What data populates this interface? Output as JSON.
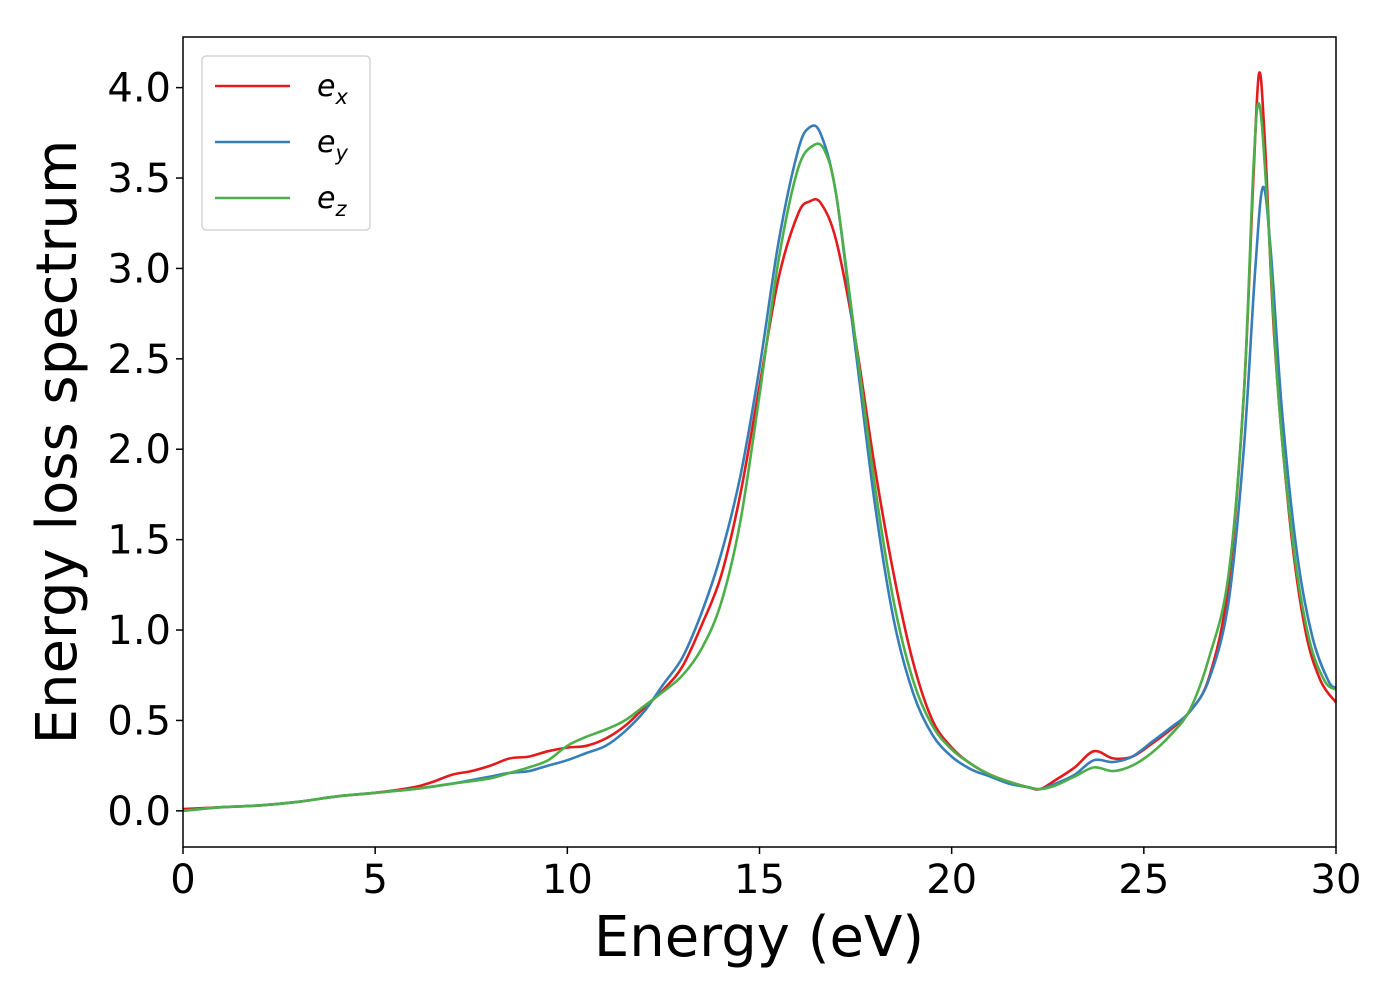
{
  "chart_data": {
    "type": "line",
    "title": "",
    "xlabel": "Energy (eV)",
    "ylabel": "Energy loss spectrum",
    "xlim": [
      0,
      30
    ],
    "ylim": [
      -0.2,
      4.28
    ],
    "xticks": [
      0,
      5,
      10,
      15,
      20,
      25,
      30
    ],
    "yticks": [
      0.0,
      0.5,
      1.0,
      1.5,
      2.0,
      2.5,
      3.0,
      3.5,
      4.0
    ],
    "xtick_labels": [
      "0",
      "5",
      "10",
      "15",
      "20",
      "25",
      "30"
    ],
    "ytick_labels": [
      "0.0",
      "0.5",
      "1.0",
      "1.5",
      "2.0",
      "2.5",
      "3.0",
      "3.5",
      "4.0"
    ],
    "grid": false,
    "legend_position": "top-left",
    "series": [
      {
        "name": "e",
        "subscript": "x",
        "color": "#e41a1c",
        "x": [
          0,
          1,
          2,
          3,
          4,
          5,
          6,
          6.5,
          7,
          7.5,
          8,
          8.5,
          9,
          9.5,
          10,
          10.5,
          11,
          11.5,
          12,
          12.5,
          13,
          13.5,
          14,
          14.5,
          15,
          15.5,
          16,
          16.3,
          16.6,
          17,
          17.5,
          18,
          18.5,
          19,
          19.5,
          20,
          20.5,
          21,
          21.5,
          22,
          22.3,
          22.7,
          23.2,
          23.7,
          24.2,
          24.7,
          25.2,
          25.7,
          26.2,
          26.7,
          27.2,
          27.6,
          27.85,
          28.0,
          28.15,
          28.4,
          28.8,
          29.2,
          29.6,
          30
        ],
        "y": [
          0.01,
          0.02,
          0.03,
          0.05,
          0.08,
          0.1,
          0.13,
          0.16,
          0.2,
          0.22,
          0.25,
          0.29,
          0.3,
          0.33,
          0.35,
          0.36,
          0.4,
          0.47,
          0.57,
          0.67,
          0.8,
          1.03,
          1.3,
          1.75,
          2.35,
          2.95,
          3.3,
          3.37,
          3.36,
          3.15,
          2.6,
          1.9,
          1.3,
          0.82,
          0.5,
          0.35,
          0.26,
          0.2,
          0.16,
          0.13,
          0.12,
          0.17,
          0.24,
          0.33,
          0.29,
          0.3,
          0.37,
          0.45,
          0.55,
          0.74,
          1.25,
          2.3,
          3.5,
          4.08,
          3.7,
          2.6,
          1.6,
          1.0,
          0.72,
          0.6
        ]
      },
      {
        "name": "e",
        "subscript": "y",
        "color": "#377eb8",
        "x": [
          0,
          1,
          2,
          3,
          4,
          5,
          6,
          7,
          8,
          8.5,
          9,
          9.5,
          10,
          10.5,
          11,
          11.5,
          12,
          12.5,
          13,
          13.5,
          14,
          14.5,
          15,
          15.5,
          16,
          16.3,
          16.6,
          17,
          17.5,
          18,
          18.5,
          19,
          19.5,
          20,
          20.5,
          21,
          21.5,
          22,
          22.3,
          22.7,
          23.2,
          23.7,
          24.2,
          24.7,
          25.2,
          25.7,
          26.2,
          26.7,
          27.2,
          27.6,
          27.9,
          28.1,
          28.3,
          28.6,
          29,
          29.4,
          29.8,
          30
        ],
        "y": [
          0.0,
          0.02,
          0.03,
          0.05,
          0.08,
          0.1,
          0.12,
          0.15,
          0.19,
          0.21,
          0.22,
          0.25,
          0.28,
          0.32,
          0.36,
          0.44,
          0.55,
          0.7,
          0.85,
          1.1,
          1.42,
          1.85,
          2.45,
          3.15,
          3.65,
          3.78,
          3.74,
          3.4,
          2.55,
          1.7,
          1.05,
          0.65,
          0.42,
          0.3,
          0.23,
          0.19,
          0.15,
          0.13,
          0.12,
          0.15,
          0.2,
          0.28,
          0.27,
          0.3,
          0.38,
          0.46,
          0.55,
          0.73,
          1.15,
          2.0,
          3.0,
          3.45,
          3.1,
          2.2,
          1.4,
          0.95,
          0.72,
          0.68
        ]
      },
      {
        "name": "e",
        "subscript": "z",
        "color": "#4daf4a",
        "x": [
          0,
          1,
          2,
          3,
          4,
          5,
          6,
          7,
          8,
          8.5,
          9,
          9.5,
          10,
          10.5,
          11,
          11.5,
          12,
          12.5,
          13,
          13.5,
          14,
          14.5,
          15,
          15.5,
          16,
          16.4,
          16.7,
          17,
          17.5,
          18,
          18.5,
          19,
          19.5,
          20,
          20.5,
          21,
          21.5,
          22,
          22.3,
          22.7,
          23.2,
          23.7,
          24.2,
          24.7,
          25.2,
          25.7,
          26.2,
          26.7,
          27.2,
          27.6,
          27.85,
          28.0,
          28.2,
          28.5,
          28.9,
          29.3,
          29.7,
          30
        ],
        "y": [
          0.0,
          0.02,
          0.03,
          0.05,
          0.08,
          0.1,
          0.12,
          0.15,
          0.18,
          0.21,
          0.24,
          0.28,
          0.36,
          0.41,
          0.45,
          0.5,
          0.58,
          0.66,
          0.75,
          0.9,
          1.15,
          1.6,
          2.3,
          3.05,
          3.55,
          3.68,
          3.65,
          3.4,
          2.6,
          1.8,
          1.15,
          0.72,
          0.47,
          0.34,
          0.26,
          0.2,
          0.16,
          0.13,
          0.12,
          0.14,
          0.19,
          0.24,
          0.22,
          0.25,
          0.32,
          0.42,
          0.56,
          0.85,
          1.3,
          2.3,
          3.55,
          3.91,
          3.4,
          2.3,
          1.45,
          0.95,
          0.72,
          0.67
        ]
      }
    ]
  }
}
